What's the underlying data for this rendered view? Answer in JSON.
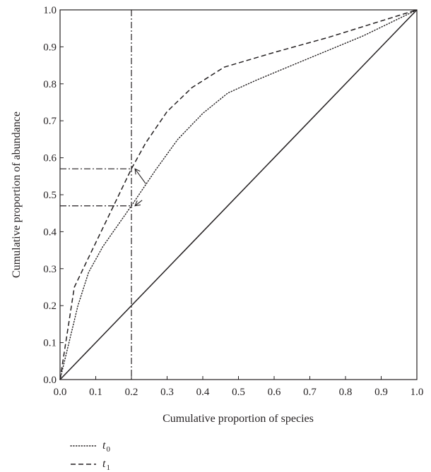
{
  "chart_data": {
    "type": "line",
    "xlabel": "Cumulative proportion of species",
    "ylabel": "Cumulative proportion of abundance",
    "xlim": [
      0,
      1
    ],
    "ylim": [
      0,
      1
    ],
    "x_ticks": [
      "0.0",
      "0.1",
      "0.2",
      "0.3",
      "0.4",
      "0.5",
      "0.6",
      "0.7",
      "0.8",
      "0.9",
      "1.0"
    ],
    "y_ticks": [
      "0.0",
      "0.1",
      "0.2",
      "0.3",
      "0.4",
      "0.5",
      "0.6",
      "0.7",
      "0.8",
      "0.9",
      "1.0"
    ],
    "grid": false,
    "legend_position": "bottom-left",
    "series": [
      {
        "name": "t0",
        "name_main": "t",
        "name_sub": "0",
        "style": "dotted",
        "points": [
          [
            0.0,
            0.0
          ],
          [
            0.02,
            0.08
          ],
          [
            0.05,
            0.2
          ],
          [
            0.08,
            0.29
          ],
          [
            0.12,
            0.36
          ],
          [
            0.2,
            0.47
          ],
          [
            0.27,
            0.57
          ],
          [
            0.33,
            0.65
          ],
          [
            0.4,
            0.72
          ],
          [
            0.47,
            0.775
          ],
          [
            0.55,
            0.81
          ],
          [
            0.7,
            0.87
          ],
          [
            0.85,
            0.93
          ],
          [
            1.0,
            1.0
          ]
        ]
      },
      {
        "name": "t1",
        "name_main": "t",
        "name_sub": "1",
        "style": "dashed",
        "points": [
          [
            0.0,
            0.0
          ],
          [
            0.04,
            0.25
          ],
          [
            0.09,
            0.35
          ],
          [
            0.14,
            0.45
          ],
          [
            0.2,
            0.57
          ],
          [
            0.24,
            0.64
          ],
          [
            0.3,
            0.725
          ],
          [
            0.37,
            0.79
          ],
          [
            0.46,
            0.845
          ],
          [
            0.6,
            0.885
          ],
          [
            0.75,
            0.925
          ],
          [
            0.9,
            0.97
          ],
          [
            1.0,
            1.0
          ]
        ]
      },
      {
        "name": "equality",
        "style": "solid",
        "points": [
          [
            0.0,
            0.0
          ],
          [
            1.0,
            1.0
          ]
        ]
      }
    ],
    "annotations": {
      "reference_x": 0.2,
      "reference_y": [
        0.57,
        0.47
      ],
      "arrows": [
        {
          "from": [
            0.24,
            0.53
          ],
          "to": [
            0.21,
            0.57
          ]
        },
        {
          "from": [
            0.23,
            0.485
          ],
          "to": [
            0.21,
            0.47
          ]
        }
      ]
    }
  }
}
